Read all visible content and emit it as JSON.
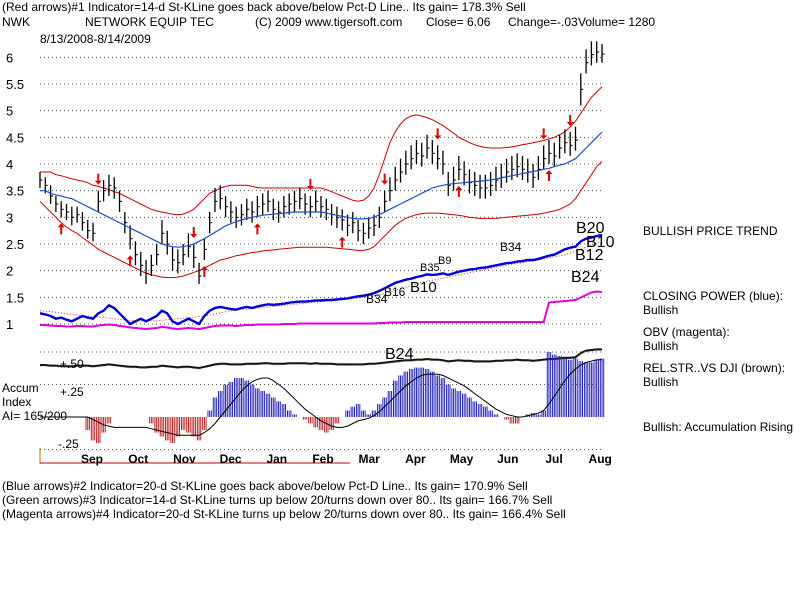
{
  "header": {
    "line1": "(Red arrows)#1 Indicator=14-d St-KLine goes back above/below Pct-D Line.. Its gain= 178.3% Sell",
    "symbol": "NWK",
    "company": "NETWORK EQUIP TEC",
    "copyright": "(C) 2009 www.tigersoft.com",
    "close": "Close=  6.06",
    "change": "Change=-.03",
    "volume": "Volume= 1280",
    "date_range": "8/13/2008-8/14/2009"
  },
  "footer": {
    "line1": "(Blue arrows)#2 Indicator=20-d St-KLine goes back above/below Pct-D Line.. Its gain= 170.9% Sell",
    "line2": "(Green arrows)#3 Indicator=14-d St-KLine turns up below 20/turns down over 80.. Its gain= 166.7% Sell",
    "line3": "(Magenta arrows)#4 Indicator=20-d St-KLine turns up below 20/turns down over 80.. Its gain= 166.4% Sell"
  },
  "right_labels": {
    "trend": "BULLISH PRICE TREND",
    "closing_power": "CLOSING POWER (blue):",
    "closing_power_status": "Bullish",
    "obv": "OBV (magenta):",
    "obv_status": "Bullish",
    "relstr": "REL.STR..VS DJI (brown):",
    "relstr_status": "Bullish",
    "accum_status": "Bullish: Accumulation Rising"
  },
  "accum_labels": {
    "title1": "Accum",
    "title2": "Index",
    "ai": "AI= 165/200",
    "plus50": "+.50",
    "plus25": "+.25",
    "minus25": "-.25"
  },
  "chart_data": {
    "type": "line",
    "ylim": [
      0.7,
      6.4
    ],
    "y_ticks": [
      6,
      5.5,
      5,
      4.5,
      4,
      3.5,
      3,
      2.5,
      2,
      1.5,
      1
    ],
    "y_tick_labels": [
      "6",
      "5.5",
      "5",
      "4.5",
      "4",
      "3.5",
      "3",
      "2.5",
      "2",
      "1.5",
      "1"
    ],
    "x_ticks": [
      "Sep",
      "Oct",
      "Nov",
      "Dec",
      "Jan",
      "Feb",
      "Mar",
      "Apr",
      "May",
      "Jun",
      "Jul",
      "Aug"
    ],
    "price_close": [
      3.7,
      3.6,
      3.4,
      3.25,
      3.15,
      3.1,
      3.0,
      3.05,
      2.9,
      2.75,
      2.7,
      3.3,
      3.5,
      3.6,
      3.55,
      3.3,
      2.9,
      2.6,
      2.3,
      2.1,
      1.95,
      2.1,
      2.3,
      2.7,
      2.5,
      2.2,
      2.15,
      2.3,
      2.45,
      2.25,
      1.9,
      2.4,
      2.9,
      3.3,
      3.35,
      3.2,
      3.1,
      3.0,
      3.05,
      3.15,
      3.1,
      3.2,
      3.25,
      3.3,
      3.15,
      3.1,
      3.2,
      3.25,
      3.3,
      3.35,
      3.25,
      3.2,
      3.3,
      3.2,
      3.15,
      3.05,
      3.0,
      2.95,
      2.85,
      2.9,
      2.75,
      2.7,
      2.8,
      2.85,
      3.0,
      3.3,
      3.5,
      3.7,
      3.85,
      4.0,
      4.1,
      4.2,
      4.15,
      4.3,
      4.2,
      4.1,
      4.0,
      3.6,
      3.7,
      3.9,
      3.8,
      3.65,
      3.6,
      3.55,
      3.55,
      3.6,
      3.7,
      3.75,
      3.85,
      3.9,
      3.95,
      3.9,
      3.85,
      3.75,
      3.9,
      4.1,
      4.2,
      4.15,
      4.3,
      4.4,
      4.35,
      4.45,
      5.4,
      5.9,
      6.05,
      6.1,
      6.06
    ],
    "price_high": [
      3.85,
      3.75,
      3.6,
      3.4,
      3.3,
      3.25,
      3.2,
      3.2,
      3.1,
      2.95,
      2.9,
      3.5,
      3.7,
      3.8,
      3.75,
      3.5,
      3.1,
      2.85,
      2.55,
      2.35,
      2.2,
      2.3,
      2.5,
      2.95,
      2.75,
      2.45,
      2.4,
      2.5,
      2.7,
      2.5,
      2.15,
      2.6,
      3.1,
      3.55,
      3.6,
      3.4,
      3.3,
      3.2,
      3.25,
      3.35,
      3.3,
      3.4,
      3.45,
      3.5,
      3.35,
      3.3,
      3.4,
      3.45,
      3.5,
      3.55,
      3.45,
      3.4,
      3.5,
      3.4,
      3.35,
      3.25,
      3.2,
      3.15,
      3.05,
      3.1,
      2.95,
      2.9,
      3.0,
      3.05,
      3.2,
      3.5,
      3.75,
      3.95,
      4.1,
      4.25,
      4.35,
      4.45,
      4.4,
      4.55,
      4.45,
      4.35,
      4.25,
      3.85,
      3.95,
      4.15,
      4.05,
      3.9,
      3.85,
      3.8,
      3.8,
      3.85,
      3.95,
      4.0,
      4.1,
      4.15,
      4.2,
      4.15,
      4.1,
      4.0,
      4.15,
      4.35,
      4.45,
      4.4,
      4.55,
      4.65,
      4.6,
      4.7,
      5.7,
      6.15,
      6.3,
      6.3,
      6.25
    ],
    "price_low": [
      3.55,
      3.45,
      3.25,
      3.1,
      3.0,
      2.95,
      2.85,
      2.9,
      2.75,
      2.6,
      2.55,
      3.1,
      3.3,
      3.4,
      3.35,
      3.1,
      2.7,
      2.4,
      2.1,
      1.9,
      1.75,
      1.9,
      2.1,
      2.5,
      2.3,
      2.0,
      1.95,
      2.1,
      2.25,
      2.05,
      1.75,
      2.2,
      2.7,
      3.1,
      3.15,
      3.0,
      2.9,
      2.8,
      2.85,
      2.95,
      2.9,
      3.0,
      3.05,
      3.1,
      2.95,
      2.9,
      3.0,
      3.05,
      3.1,
      3.15,
      3.05,
      3.0,
      3.1,
      3.0,
      2.95,
      2.85,
      2.8,
      2.75,
      2.65,
      2.7,
      2.55,
      2.5,
      2.6,
      2.65,
      2.8,
      3.1,
      3.3,
      3.5,
      3.65,
      3.8,
      3.9,
      4.0,
      3.95,
      4.1,
      4.0,
      3.9,
      3.8,
      3.4,
      3.5,
      3.7,
      3.6,
      3.45,
      3.4,
      3.35,
      3.35,
      3.4,
      3.5,
      3.55,
      3.65,
      3.7,
      3.75,
      3.7,
      3.65,
      3.55,
      3.7,
      3.9,
      4.0,
      3.95,
      4.1,
      4.2,
      4.15,
      4.25,
      5.1,
      5.7,
      5.85,
      5.9,
      5.9
    ],
    "ma_50": [
      3.5,
      3.5,
      3.45,
      3.42,
      3.4,
      3.37,
      3.35,
      3.3,
      3.25,
      3.2,
      3.15,
      3.1,
      3.05,
      3.0,
      2.95,
      2.9,
      2.85,
      2.8,
      2.75,
      2.7,
      2.65,
      2.6,
      2.55,
      2.5,
      2.47,
      2.45,
      2.44,
      2.45,
      2.47,
      2.5,
      2.55,
      2.6,
      2.66,
      2.72,
      2.78,
      2.84,
      2.88,
      2.92,
      2.95,
      2.98,
      3.0,
      3.02,
      3.04,
      3.05,
      3.06,
      3.07,
      3.08,
      3.09,
      3.1,
      3.1,
      3.1,
      3.1,
      3.1,
      3.1,
      3.08,
      3.06,
      3.04,
      3.02,
      3.0,
      2.98,
      2.97,
      2.97,
      2.98,
      3.0,
      3.05,
      3.1,
      3.15,
      3.2,
      3.25,
      3.3,
      3.35,
      3.4,
      3.45,
      3.5,
      3.55,
      3.58,
      3.6,
      3.62,
      3.63,
      3.64,
      3.65,
      3.66,
      3.67,
      3.68,
      3.69,
      3.7,
      3.72,
      3.74,
      3.76,
      3.78,
      3.8,
      3.82,
      3.84,
      3.86,
      3.88,
      3.9,
      3.92,
      3.95,
      3.98,
      4.0,
      4.05,
      4.1,
      4.2,
      4.3,
      4.4,
      4.5,
      4.6
    ],
    "band_upper": [
      3.85,
      3.85,
      3.85,
      3.8,
      3.78,
      3.75,
      3.72,
      3.7,
      3.68,
      3.65,
      3.6,
      3.58,
      3.55,
      3.52,
      3.48,
      3.45,
      3.4,
      3.35,
      3.3,
      3.25,
      3.2,
      3.15,
      3.12,
      3.1,
      3.08,
      3.06,
      3.05,
      3.06,
      3.1,
      3.15,
      3.25,
      3.35,
      3.45,
      3.5,
      3.55,
      3.58,
      3.6,
      3.6,
      3.6,
      3.6,
      3.58,
      3.56,
      3.55,
      3.55,
      3.55,
      3.55,
      3.55,
      3.55,
      3.55,
      3.55,
      3.55,
      3.55,
      3.55,
      3.55,
      3.52,
      3.48,
      3.44,
      3.4,
      3.36,
      3.32,
      3.3,
      3.32,
      3.4,
      3.55,
      3.8,
      4.1,
      4.4,
      4.6,
      4.75,
      4.85,
      4.9,
      4.92,
      4.9,
      4.87,
      4.83,
      4.78,
      4.72,
      4.65,
      4.58,
      4.5,
      4.45,
      4.4,
      4.36,
      4.33,
      4.31,
      4.3,
      4.3,
      4.3,
      4.31,
      4.32,
      4.34,
      4.36,
      4.38,
      4.4,
      4.42,
      4.44,
      4.47,
      4.5,
      4.55,
      4.6,
      4.7,
      4.8,
      4.95,
      5.1,
      5.25,
      5.35,
      5.45
    ],
    "band_lower": [
      3.3,
      3.2,
      3.1,
      3.0,
      2.9,
      2.82,
      2.75,
      2.7,
      2.62,
      2.55,
      2.48,
      2.4,
      2.35,
      2.3,
      2.25,
      2.2,
      2.15,
      2.1,
      2.05,
      2.0,
      1.95,
      1.92,
      1.9,
      1.88,
      1.87,
      1.87,
      1.88,
      1.9,
      1.93,
      1.97,
      2.0,
      2.05,
      2.1,
      2.15,
      2.2,
      2.22,
      2.25,
      2.28,
      2.3,
      2.32,
      2.34,
      2.35,
      2.37,
      2.38,
      2.39,
      2.4,
      2.41,
      2.42,
      2.43,
      2.44,
      2.44,
      2.44,
      2.44,
      2.44,
      2.44,
      2.43,
      2.42,
      2.41,
      2.4,
      2.39,
      2.38,
      2.38,
      2.4,
      2.45,
      2.55,
      2.65,
      2.75,
      2.85,
      2.92,
      2.98,
      3.02,
      3.05,
      3.07,
      3.08,
      3.08,
      3.08,
      3.07,
      3.06,
      3.05,
      3.04,
      3.02,
      3.0,
      2.99,
      2.98,
      2.98,
      2.98,
      2.98,
      2.99,
      3.0,
      3.01,
      3.02,
      3.03,
      3.04,
      3.05,
      3.06,
      3.08,
      3.1,
      3.12,
      3.15,
      3.2,
      3.25,
      3.35,
      3.5,
      3.65,
      3.8,
      3.95,
      4.05
    ],
    "closing_power": [
      1.2,
      1.18,
      1.15,
      1.1,
      1.12,
      1.08,
      1.05,
      1.1,
      1.15,
      1.12,
      1.1,
      1.2,
      1.25,
      1.35,
      1.3,
      1.2,
      1.1,
      1.0,
      1.05,
      1.1,
      1.05,
      1.1,
      1.15,
      1.25,
      1.2,
      1.05,
      1.0,
      1.05,
      1.1,
      1.05,
      1.0,
      1.15,
      1.25,
      1.3,
      1.32,
      1.3,
      1.28,
      1.27,
      1.3,
      1.32,
      1.3,
      1.33,
      1.35,
      1.37,
      1.36,
      1.37,
      1.38,
      1.4,
      1.41,
      1.42,
      1.42,
      1.43,
      1.44,
      1.44,
      1.45,
      1.45,
      1.46,
      1.47,
      1.48,
      1.5,
      1.52,
      1.53,
      1.55,
      1.58,
      1.62,
      1.67,
      1.72,
      1.77,
      1.8,
      1.83,
      1.85,
      1.88,
      1.9,
      1.93,
      1.92,
      1.93,
      1.95,
      1.92,
      1.95,
      1.98,
      2.0,
      2.02,
      2.03,
      2.05,
      2.06,
      2.08,
      2.1,
      2.12,
      2.14,
      2.15,
      2.17,
      2.18,
      2.2,
      2.2,
      2.22,
      2.25,
      2.28,
      2.3,
      2.35,
      2.4,
      2.43,
      2.45,
      2.55,
      2.6,
      2.62,
      2.65,
      2.67
    ],
    "closing_power_ma": [
      1.25,
      1.24,
      1.23,
      1.22,
      1.2,
      1.19,
      1.18,
      1.17,
      1.16,
      1.15,
      1.14,
      1.13,
      1.12,
      1.11,
      1.1,
      1.09,
      1.08,
      1.07,
      1.06,
      1.06,
      1.06,
      1.06,
      1.06,
      1.07,
      1.08,
      1.09,
      1.1,
      1.11,
      1.12,
      1.13,
      1.14,
      1.15,
      1.17,
      1.19,
      1.21,
      1.23,
      1.25,
      1.26,
      1.27,
      1.28,
      1.29,
      1.3,
      1.31,
      1.32,
      1.33,
      1.34,
      1.35,
      1.36,
      1.37,
      1.38,
      1.39,
      1.4,
      1.41,
      1.42,
      1.43,
      1.44,
      1.45,
      1.46,
      1.47,
      1.48,
      1.49,
      1.5,
      1.51,
      1.53,
      1.55,
      1.57,
      1.6,
      1.63,
      1.66,
      1.69,
      1.72,
      1.75,
      1.78,
      1.8,
      1.82,
      1.84,
      1.86,
      1.88,
      1.9,
      1.92,
      1.94,
      1.96,
      1.98,
      2.0,
      2.02,
      2.04,
      2.06,
      2.08,
      2.1,
      2.12,
      2.14,
      2.15,
      2.17,
      2.18,
      2.2,
      2.22,
      2.24,
      2.26,
      2.28,
      2.3,
      2.33,
      2.36,
      2.4,
      2.44,
      2.48,
      2.52,
      2.56
    ],
    "obv": [
      0.3,
      0.3,
      0.29,
      0.28,
      0.28,
      0.27,
      0.27,
      0.28,
      0.28,
      0.27,
      0.27,
      0.29,
      0.3,
      0.31,
      0.3,
      0.28,
      0.27,
      0.25,
      0.24,
      0.23,
      0.22,
      0.23,
      0.24,
      0.26,
      0.25,
      0.23,
      0.22,
      0.23,
      0.24,
      0.23,
      0.22,
      0.24,
      0.26,
      0.28,
      0.29,
      0.29,
      0.29,
      0.28,
      0.29,
      0.3,
      0.3,
      0.31,
      0.31,
      0.31,
      0.31,
      0.31,
      0.32,
      0.32,
      0.32,
      0.33,
      0.33,
      0.33,
      0.33,
      0.33,
      0.33,
      0.33,
      0.33,
      0.33,
      0.33,
      0.33,
      0.33,
      0.33,
      0.33,
      0.33,
      0.34,
      0.34,
      0.35,
      0.35,
      0.35,
      0.36,
      0.36,
      0.36,
      0.36,
      0.36,
      0.36,
      0.36,
      0.36,
      0.36,
      0.36,
      0.36,
      0.36,
      0.36,
      0.36,
      0.36,
      0.36,
      0.36,
      0.36,
      0.36,
      0.36,
      0.36,
      0.36,
      0.36,
      0.36,
      0.36,
      0.36,
      0.36,
      0.75,
      0.76,
      0.77,
      0.78,
      0.79,
      0.8,
      0.85,
      0.9,
      0.95,
      0.97,
      0.96
    ],
    "rel_strength": [
      0.5,
      0.5,
      0.49,
      0.49,
      0.48,
      0.48,
      0.48,
      0.49,
      0.49,
      0.49,
      0.48,
      0.49,
      0.5,
      0.51,
      0.5,
      0.49,
      0.48,
      0.47,
      0.47,
      0.46,
      0.46,
      0.47,
      0.47,
      0.49,
      0.48,
      0.47,
      0.46,
      0.47,
      0.47,
      0.46,
      0.45,
      0.47,
      0.49,
      0.51,
      0.52,
      0.52,
      0.51,
      0.51,
      0.51,
      0.52,
      0.52,
      0.52,
      0.53,
      0.53,
      0.52,
      0.52,
      0.52,
      0.53,
      0.53,
      0.53,
      0.53,
      0.52,
      0.53,
      0.52,
      0.52,
      0.52,
      0.51,
      0.51,
      0.51,
      0.51,
      0.51,
      0.51,
      0.52,
      0.52,
      0.53,
      0.54,
      0.55,
      0.56,
      0.57,
      0.58,
      0.58,
      0.59,
      0.59,
      0.6,
      0.59,
      0.59,
      0.58,
      0.56,
      0.57,
      0.58,
      0.57,
      0.57,
      0.56,
      0.56,
      0.56,
      0.56,
      0.57,
      0.57,
      0.58,
      0.58,
      0.59,
      0.58,
      0.58,
      0.57,
      0.58,
      0.59,
      0.6,
      0.6,
      0.61,
      0.62,
      0.62,
      0.63,
      0.7,
      0.74,
      0.75,
      0.76,
      0.76
    ],
    "accum_index": [
      0,
      0,
      0,
      0,
      0,
      0,
      0,
      0,
      0,
      -0.1,
      -0.18,
      -0.2,
      -0.12,
      -0.05,
      0,
      0,
      0,
      0,
      0,
      0,
      0,
      -0.05,
      -0.12,
      -0.15,
      -0.18,
      -0.2,
      -0.15,
      -0.1,
      -0.12,
      -0.15,
      -0.18,
      -0.1,
      0.05,
      0.15,
      0.2,
      0.25,
      0.27,
      0.3,
      0.3,
      0.28,
      0.25,
      0.22,
      0.2,
      0.18,
      0.15,
      0.12,
      0.1,
      0.05,
      0.02,
      0,
      -0.02,
      -0.05,
      -0.08,
      -0.1,
      -0.12,
      -0.1,
      -0.05,
      0,
      0.05,
      0.08,
      0.1,
      0.05,
      0.02,
      0.05,
      0.1,
      0.15,
      0.2,
      0.28,
      0.32,
      0.35,
      0.37,
      0.38,
      0.38,
      0.37,
      0.35,
      0.32,
      0.3,
      0.25,
      0.22,
      0.2,
      0.18,
      0.15,
      0.12,
      0.1,
      0.08,
      0.05,
      0.02,
      0,
      -0.02,
      -0.05,
      -0.05,
      0,
      0.02,
      0.03,
      0.02,
      0.05,
      0.5,
      0.48,
      0.47,
      0.45,
      0.44,
      0.45,
      0.43,
      0.42,
      0.42,
      0.44,
      0.45
    ],
    "accum_ma": [
      0,
      0,
      0,
      0,
      0,
      0,
      0,
      0,
      0,
      0,
      -0.02,
      -0.04,
      -0.06,
      -0.07,
      -0.08,
      -0.08,
      -0.08,
      -0.08,
      -0.08,
      -0.08,
      -0.08,
      -0.09,
      -0.1,
      -0.11,
      -0.12,
      -0.13,
      -0.14,
      -0.14,
      -0.14,
      -0.14,
      -0.14,
      -0.12,
      -0.09,
      -0.05,
      0,
      0.05,
      0.1,
      0.15,
      0.2,
      0.24,
      0.27,
      0.29,
      0.3,
      0.3,
      0.28,
      0.25,
      0.22,
      0.18,
      0.14,
      0.1,
      0.06,
      0.03,
      0,
      -0.03,
      -0.05,
      -0.07,
      -0.08,
      -0.08,
      -0.07,
      -0.05,
      -0.03,
      -0.02,
      -0.01,
      0.01,
      0.04,
      0.08,
      0.12,
      0.16,
      0.2,
      0.24,
      0.27,
      0.3,
      0.32,
      0.33,
      0.33,
      0.33,
      0.32,
      0.3,
      0.28,
      0.26,
      0.24,
      0.21,
      0.18,
      0.15,
      0.12,
      0.09,
      0.06,
      0.04,
      0.02,
      0.01,
      0,
      0,
      0.01,
      0.02,
      0.03,
      0.05,
      0.1,
      0.16,
      0.22,
      0.28,
      0.33,
      0.37,
      0.4,
      0.42,
      0.43,
      0.44,
      0.44
    ],
    "signals": {
      "red_down_idx": [
        11,
        29,
        51,
        65,
        75,
        95,
        100
      ],
      "red_up_idx": [
        4,
        17,
        31,
        41,
        57,
        79,
        96
      ],
      "blue_labels": [
        "B34",
        "B16",
        "B10",
        "B35",
        "B9",
        "B34",
        "B20",
        "B10",
        "B12",
        "B24",
        "B24"
      ],
      "blue_label_idx": [
        63,
        66,
        72,
        75,
        77,
        90,
        101,
        103,
        101,
        101,
        66
      ]
    }
  }
}
